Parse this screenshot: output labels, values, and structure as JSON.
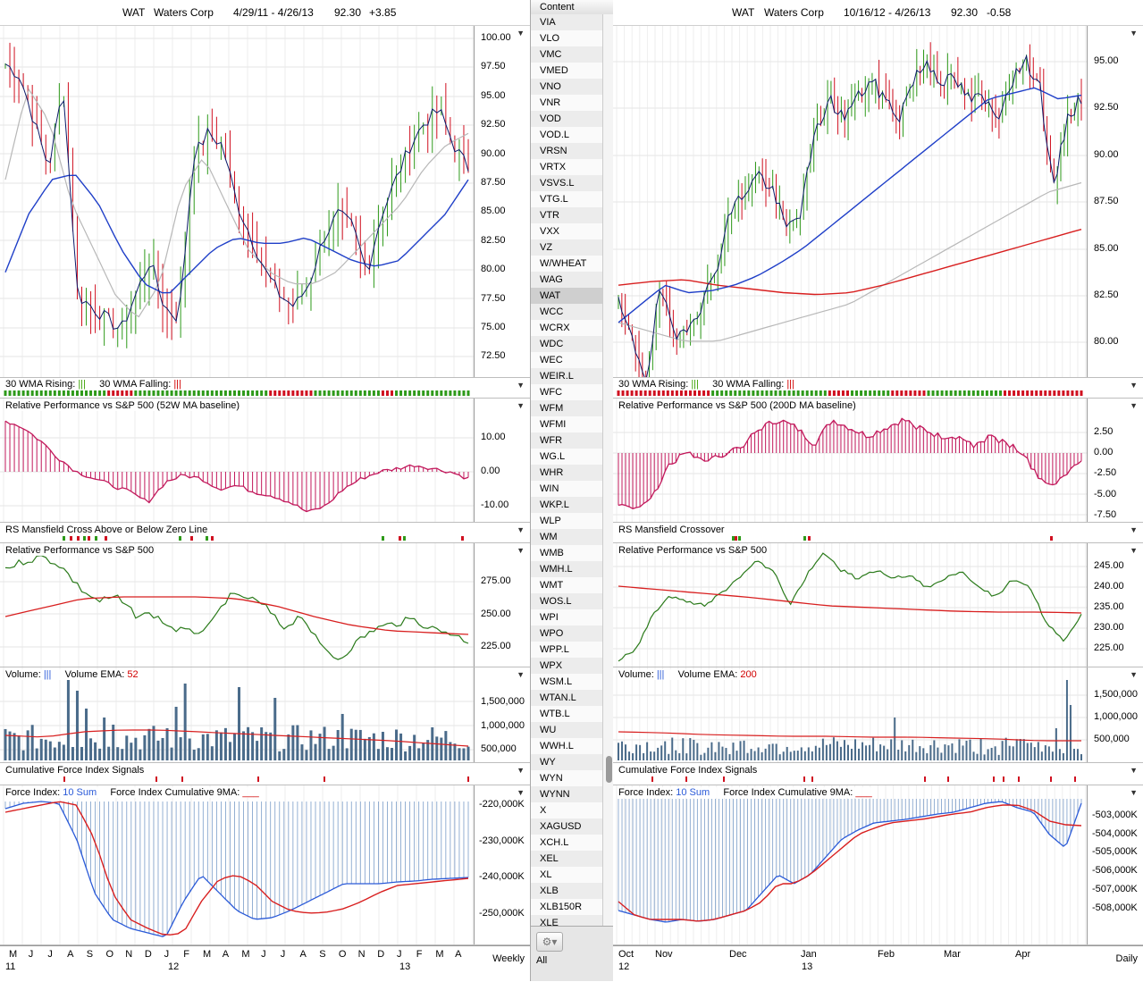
{
  "left": {
    "header": {
      "symbol": "WAT",
      "name": "Waters Corp",
      "range": "4/29/11 - 4/26/13",
      "price": "92.30",
      "change": "+3.85"
    },
    "price_ticks": [
      "100.00",
      "97.50",
      "95.00",
      "92.50",
      "90.00",
      "87.50",
      "85.00",
      "82.50",
      "80.00",
      "77.50",
      "75.00",
      "72.50"
    ],
    "wma": {
      "rising": "30 WMA Rising:",
      "falling": "30 WMA Falling:",
      "rising_glyph": "|||",
      "falling_glyph": "|||"
    },
    "relperf52": {
      "title": "Relative Performance vs S&P 500 (52W MA baseline)",
      "ticks": [
        "10.00",
        "0.00",
        "-10.00"
      ]
    },
    "rsm": {
      "title": "RS Mansfield Cross Above or Below Zero Line"
    },
    "relperf": {
      "title": "Relative Performance vs S&P 500",
      "ticks": [
        "275.00",
        "250.00",
        "225.00"
      ]
    },
    "volume": {
      "title": "Volume:",
      "glyph": "|||",
      "ema_label": "Volume EMA:",
      "ema_value": "52",
      "ticks": [
        "1,500,000",
        "1,000,000",
        "500,000"
      ]
    },
    "cfi": {
      "title": "Cumulative Force Index Signals"
    },
    "force": {
      "title": "Force Index:",
      "sum": "10 Sum",
      "cum": "Force Index Cumulative 9MA:",
      "ticks": [
        "-220,000K",
        "-230,000K",
        "-240,000K",
        "-250,000K"
      ]
    },
    "months": [
      "M",
      "J",
      "J",
      "A",
      "S",
      "O",
      "N",
      "D",
      "J",
      "F",
      "M",
      "A",
      "M",
      "J",
      "J",
      "A",
      "S",
      "O",
      "N",
      "D",
      "J",
      "F",
      "M",
      "A"
    ],
    "years": [
      "11",
      "12",
      "13"
    ],
    "period": "Weekly"
  },
  "right": {
    "header": {
      "symbol": "WAT",
      "name": "Waters Corp",
      "range": "10/16/12 - 4/26/13",
      "price": "92.30",
      "change": "-0.58"
    },
    "price_ticks": [
      "95.00",
      "92.50",
      "90.00",
      "87.50",
      "85.00",
      "82.50",
      "80.00"
    ],
    "wma": {
      "rising": "30 WMA Rising:",
      "falling": "30 WMA Falling:",
      "rising_glyph": "|||",
      "falling_glyph": "|||"
    },
    "relperf200": {
      "title": "Relative Performance vs S&P 500 (200D MA baseline)",
      "ticks": [
        "2.50",
        "0.00",
        "-2.50",
        "-5.00",
        "-7.50"
      ]
    },
    "rsm": {
      "title": "RS Mansfield Crossover"
    },
    "relperf": {
      "title": "Relative Performance vs S&P 500",
      "ticks": [
        "245.00",
        "240.00",
        "235.00",
        "230.00",
        "225.00"
      ]
    },
    "volume": {
      "title": "Volume:",
      "glyph": "|||",
      "ema_label": "Volume EMA:",
      "ema_value": "200",
      "ticks": [
        "1,500,000",
        "1,000,000",
        "500,000"
      ]
    },
    "cfi": {
      "title": "Cumulative Force Index Signals"
    },
    "force": {
      "title": "Force Index:",
      "sum": "10 Sum",
      "cum": "Force Index Cumulative 9MA:",
      "ticks": [
        "-503,000K",
        "-504,000K",
        "-505,000K",
        "-506,000K",
        "-507,000K",
        "-508,000K"
      ]
    },
    "months": [
      "Oct",
      "Nov",
      "Dec",
      "Jan",
      "Feb",
      "Mar",
      "Apr"
    ],
    "years": [
      "12",
      "13"
    ],
    "period": "Daily"
  },
  "content": {
    "header": "Content",
    "symbols": [
      "VIA",
      "VLO",
      "VMC",
      "VMED",
      "VNO",
      "VNR",
      "VOD",
      "VOD.L",
      "VRSN",
      "VRTX",
      "VSVS.L",
      "VTG.L",
      "VTR",
      "VXX",
      "VZ",
      "W/WHEAT",
      "WAG",
      "WAT",
      "WCC",
      "WCRX",
      "WDC",
      "WEC",
      "WEIR.L",
      "WFC",
      "WFM",
      "WFMI",
      "WFR",
      "WG.L",
      "WHR",
      "WIN",
      "WKP.L",
      "WLP",
      "WM",
      "WMB",
      "WMH.L",
      "WMT",
      "WOS.L",
      "WPI",
      "WPO",
      "WPP.L",
      "WPX",
      "WSM.L",
      "WTAN.L",
      "WTB.L",
      "WU",
      "WWH.L",
      "WY",
      "WYN",
      "WYNN",
      "X",
      "XAGUSD",
      "XCH.L",
      "XEL",
      "XL",
      "XLB",
      "XLB150R",
      "XLE"
    ],
    "selected": "WAT",
    "footer_label": "All",
    "gear": "⚙▾"
  },
  "colors": {
    "up": "#2e9a1a",
    "down": "#d01020",
    "ma_blue": "#1f3fc8",
    "ma_red": "#d81f1f",
    "ma_gray": "#b8b8b8",
    "rp": "#c2185b",
    "perf_green": "#2a7a1a",
    "volume": "#4a6b8a"
  }
}
